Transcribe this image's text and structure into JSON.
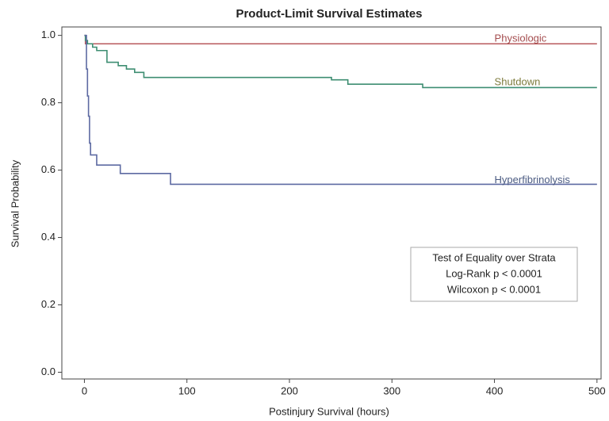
{
  "chart_data": {
    "type": "line",
    "title": "Product-Limit Survival Estimates",
    "x_label": "Postinjury Survival (hours)",
    "y_label": "Survival Probability",
    "xlim": [
      -22,
      504
    ],
    "ylim": [
      -0.02,
      1.025
    ],
    "xticks": [
      0,
      100,
      200,
      300,
      400,
      500
    ],
    "yticks": [
      {
        "value": 0,
        "label": "0.0"
      },
      0.2,
      0.4,
      0.6,
      0.8,
      {
        "value": 1,
        "label": "1.0"
      }
    ],
    "series": [
      {
        "name": "Physiologic",
        "color": "#b85a5c",
        "label_color": "#a44c4e",
        "label_x": 400,
        "label_y": 0.99,
        "x": [
          0,
          1,
          1,
          500
        ],
        "values": [
          1,
          1,
          0.975,
          0.975
        ]
      },
      {
        "name": "Shutdown",
        "color": "#3e8e72",
        "label_color": "#7d7b3c",
        "label_x": 400,
        "label_y": 0.86,
        "x": [
          0,
          1,
          1,
          3,
          3,
          8,
          8,
          12,
          12,
          22,
          22,
          33,
          33,
          41,
          41,
          49,
          49,
          58,
          58,
          241,
          241,
          257,
          257,
          330,
          330,
          500
        ],
        "values": [
          1,
          1,
          0.985,
          0.985,
          0.975,
          0.975,
          0.965,
          0.965,
          0.955,
          0.955,
          0.92,
          0.92,
          0.91,
          0.91,
          0.9,
          0.9,
          0.89,
          0.89,
          0.875,
          0.875,
          0.868,
          0.868,
          0.855,
          0.855,
          0.845,
          0.845
        ]
      },
      {
        "name": "Hyperfibrinolysis",
        "color": "#5d6aa2",
        "label_color": "#4b5b82",
        "label_x": 400,
        "label_y": 0.57,
        "x": [
          0,
          2,
          2,
          3,
          3,
          4,
          4,
          5,
          5,
          6,
          6,
          12,
          12,
          35,
          35,
          84,
          84,
          500
        ],
        "values": [
          1,
          1,
          0.9,
          0.9,
          0.82,
          0.82,
          0.76,
          0.76,
          0.68,
          0.68,
          0.645,
          0.645,
          0.615,
          0.615,
          0.59,
          0.59,
          0.558,
          0.558
        ]
      }
    ],
    "inset": [
      "Test of Equality over Strata",
      "Log-Rank p < 0.0001",
      "Wilcoxon p < 0.0001"
    ]
  }
}
